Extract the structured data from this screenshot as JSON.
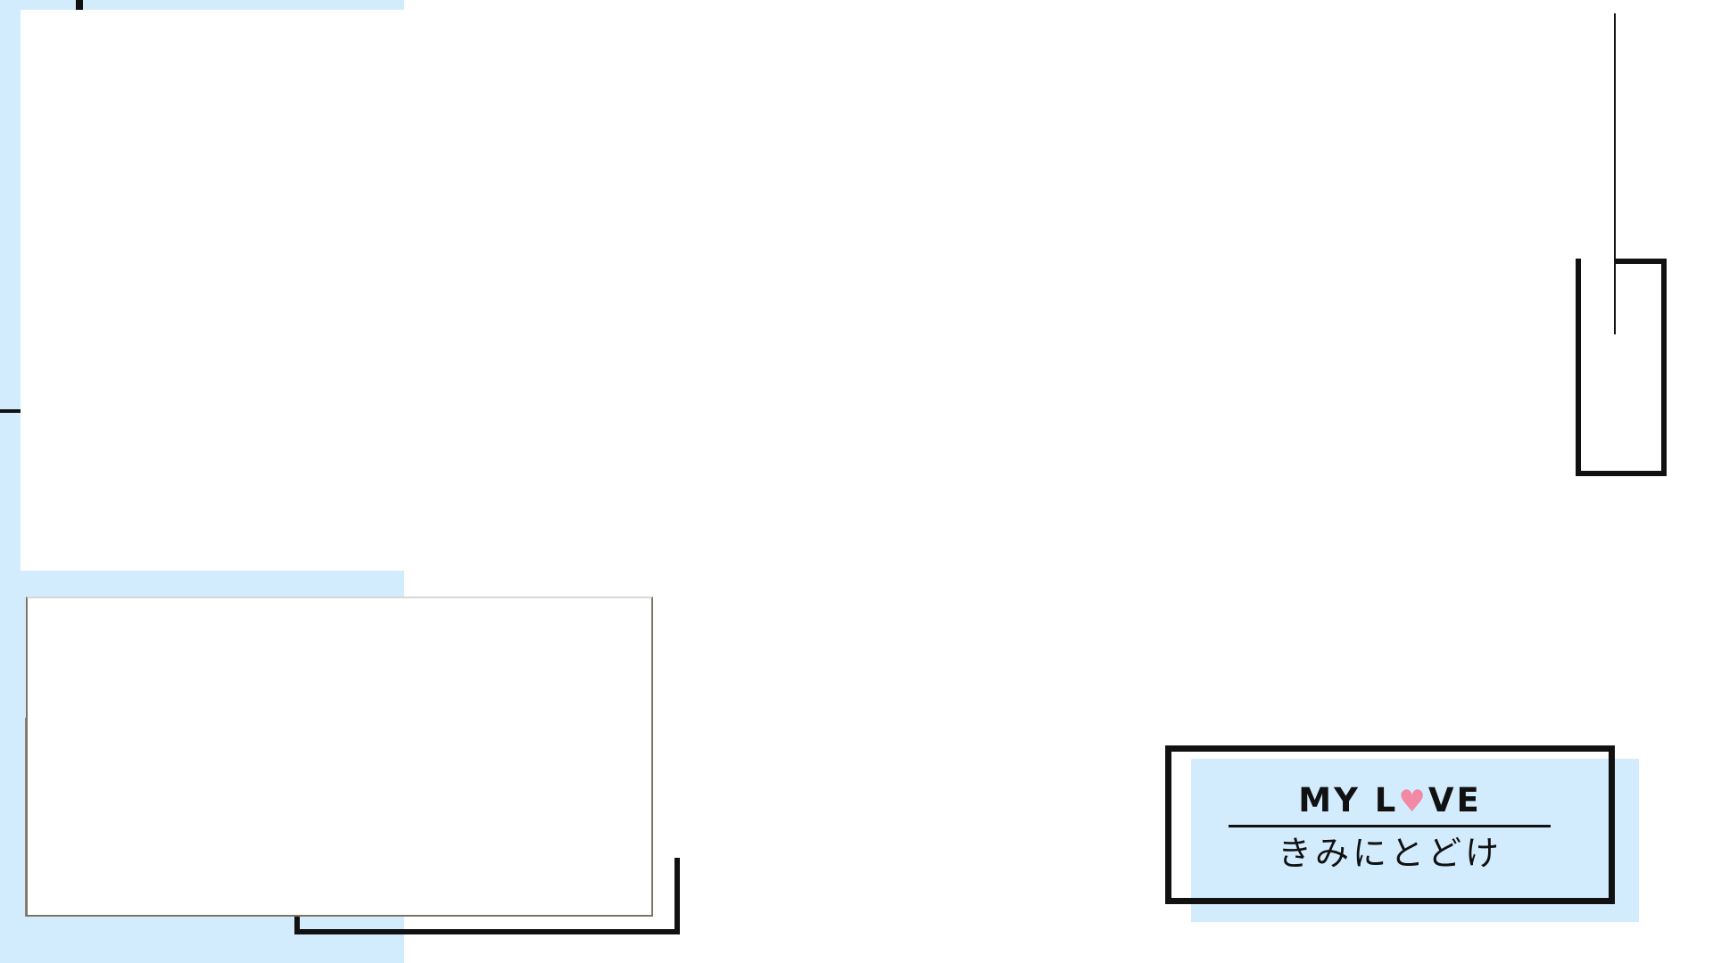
{
  "logo": {
    "title_left": "MY L",
    "title_heart": "♥",
    "title_right": "VE",
    "subtitle": "きみにとどけ"
  },
  "colors": {
    "panel_blue": "#d3ecfd",
    "outline": "#111111",
    "heart": "#f28aa6"
  },
  "icons": {
    "logo_heart": "heart-icon"
  }
}
